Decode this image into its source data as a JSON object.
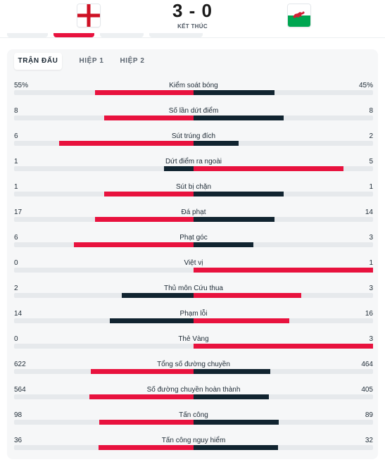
{
  "match": {
    "score": "3 - 0",
    "status": "KẾT THÚC",
    "home_flag_icon": "england-flag-icon",
    "away_flag_icon": "wales-flag-icon"
  },
  "tabs": [
    {
      "label": "TRẬN ĐẤU",
      "active": true
    },
    {
      "label": "HIỆP 1",
      "active": false
    },
    {
      "label": "HIỆP 2",
      "active": false
    }
  ],
  "colors": {
    "winner": "#e8123e",
    "loser": "#112430"
  },
  "stats": [
    {
      "name": "Kiểm soát bóng",
      "home": "55%",
      "away": "45%",
      "home_value": 55,
      "away_value": 45
    },
    {
      "name": "Số lần dứt điểm",
      "home": "8",
      "away": "8",
      "home_value": 8,
      "away_value": 8
    },
    {
      "name": "Sút trúng đích",
      "home": "6",
      "away": "2",
      "home_value": 6,
      "away_value": 2
    },
    {
      "name": "Dứt điểm ra ngoài",
      "home": "1",
      "away": "5",
      "home_value": 1,
      "away_value": 5
    },
    {
      "name": "Sút bị chặn",
      "home": "1",
      "away": "1",
      "home_value": 1,
      "away_value": 1
    },
    {
      "name": "Đá phạt",
      "home": "17",
      "away": "14",
      "home_value": 17,
      "away_value": 14
    },
    {
      "name": "Phạt góc",
      "home": "6",
      "away": "3",
      "home_value": 6,
      "away_value": 3
    },
    {
      "name": "Việt vị",
      "home": "0",
      "away": "1",
      "home_value": 0,
      "away_value": 1
    },
    {
      "name": "Thủ môn Cứu thua",
      "home": "2",
      "away": "3",
      "home_value": 2,
      "away_value": 3
    },
    {
      "name": "Phạm lỗi",
      "home": "14",
      "away": "16",
      "home_value": 14,
      "away_value": 16
    },
    {
      "name": "Thẻ Vàng",
      "home": "0",
      "away": "3",
      "home_value": 0,
      "away_value": 3
    },
    {
      "name": "Tổng số đường chuyền",
      "home": "622",
      "away": "464",
      "home_value": 622,
      "away_value": 464
    },
    {
      "name": "Số đường chuyền hoàn thành",
      "home": "564",
      "away": "405",
      "home_value": 564,
      "away_value": 405
    },
    {
      "name": "Tấn công",
      "home": "98",
      "away": "89",
      "home_value": 98,
      "away_value": 89
    },
    {
      "name": "Tấn công nguy hiểm",
      "home": "36",
      "away": "32",
      "home_value": 36,
      "away_value": 32
    }
  ]
}
